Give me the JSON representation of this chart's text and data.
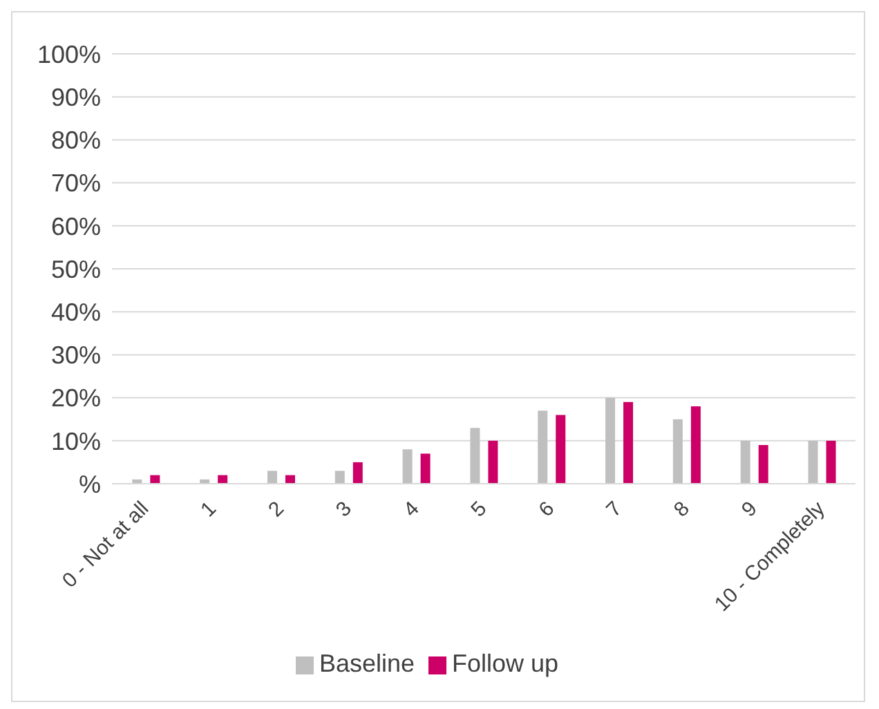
{
  "chart_data": {
    "type": "bar",
    "categories": [
      "0 - Not at all",
      "1",
      "2",
      "3",
      "4",
      "5",
      "6",
      "7",
      "8",
      "9",
      "10 - Completely"
    ],
    "series": [
      {
        "name": "Baseline",
        "color": "#bfbfbf",
        "values": [
          1,
          1,
          3,
          3,
          8,
          13,
          17,
          20,
          15,
          10,
          10
        ]
      },
      {
        "name": "Follow up",
        "color": "#cc0066",
        "values": [
          2,
          2,
          2,
          5,
          7,
          10,
          16,
          19,
          18,
          9,
          10
        ]
      }
    ],
    "ylim": [
      0,
      100
    ],
    "yticks": [
      {
        "value": 0,
        "label": "%"
      },
      {
        "value": 10,
        "label": "10%"
      },
      {
        "value": 20,
        "label": "20%"
      },
      {
        "value": 30,
        "label": "30%"
      },
      {
        "value": 40,
        "label": "40%"
      },
      {
        "value": 50,
        "label": "50%"
      },
      {
        "value": 60,
        "label": "60%"
      },
      {
        "value": 70,
        "label": "70%"
      },
      {
        "value": 80,
        "label": "80%"
      },
      {
        "value": 90,
        "label": "90%"
      },
      {
        "value": 100,
        "label": "100%"
      }
    ],
    "grid": "y",
    "legend": "bottom"
  }
}
